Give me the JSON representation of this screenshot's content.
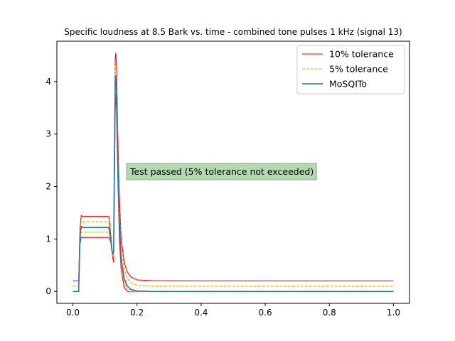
{
  "chart_data": {
    "type": "line",
    "title": "Specific loudness at 8.5 Bark vs. time - combined tone pulses 1 kHz (signal 13)",
    "xlabel": "",
    "ylabel": "",
    "xlim": [
      -0.05,
      1.05
    ],
    "ylim": [
      -0.227,
      4.77
    ],
    "xticks": [
      0.0,
      0.2,
      0.4,
      0.6,
      0.8,
      1.0
    ],
    "xtick_labels": [
      "0.0",
      "0.2",
      "0.4",
      "0.6",
      "0.8",
      "1.0"
    ],
    "yticks": [
      0,
      1,
      2,
      3,
      4
    ],
    "ytick_labels": [
      "0",
      "1",
      "2",
      "3",
      "4"
    ],
    "grid": false,
    "legend_position": "top-right",
    "annotation": "Test passed (5% tolerance not exceeded)",
    "annotation_anchor": [
      0.175,
      2.25
    ],
    "series": [
      {
        "name": "10% tolerance",
        "color": "#ff0000",
        "style": "solid",
        "x": [
          0.0,
          0.018,
          0.022,
          0.026,
          0.03,
          0.035,
          0.06,
          0.09,
          0.112,
          0.118,
          0.122,
          0.124,
          0.127,
          0.13,
          0.132,
          0.134,
          0.136,
          0.14,
          0.145,
          0.15,
          0.16,
          0.17,
          0.18,
          0.2,
          0.25,
          0.4,
          0.7,
          1.0
        ],
        "y": [
          0.2,
          0.2,
          1.2,
          1.45,
          1.43,
          1.43,
          1.43,
          1.43,
          1.43,
          1.1,
          0.8,
          0.65,
          0.55,
          3.0,
          4.45,
          4.55,
          4.3,
          3.0,
          1.8,
          1.05,
          0.55,
          0.37,
          0.28,
          0.22,
          0.205,
          0.2,
          0.2,
          0.2
        ],
        "y2": [
          0.0,
          0.0,
          0.9,
          1.04,
          1.03,
          1.03,
          1.03,
          1.03,
          1.03,
          0.95,
          0.75,
          0.68,
          0.6,
          2.3,
          3.4,
          3.75,
          3.5,
          2.2,
          1.0,
          0.45,
          0.07,
          0.0,
          0.0,
          0.0,
          0.0,
          0.0,
          0.0,
          0.0
        ]
      },
      {
        "name": "5% tolerance",
        "color": "#ffa500",
        "style": "dashed",
        "x": [
          0.0,
          0.018,
          0.022,
          0.026,
          0.03,
          0.035,
          0.06,
          0.09,
          0.112,
          0.118,
          0.122,
          0.124,
          0.127,
          0.13,
          0.132,
          0.134,
          0.136,
          0.14,
          0.145,
          0.15,
          0.16,
          0.17,
          0.18,
          0.2,
          0.25,
          0.4,
          0.7,
          1.0
        ],
        "y": [
          0.1,
          0.1,
          1.15,
          1.34,
          1.33,
          1.33,
          1.33,
          1.33,
          1.33,
          1.05,
          0.82,
          0.72,
          0.65,
          2.9,
          4.3,
          4.35,
          4.1,
          2.8,
          1.6,
          0.85,
          0.42,
          0.25,
          0.17,
          0.12,
          0.105,
          0.1,
          0.1,
          0.1
        ],
        "y2": [
          0.0,
          0.0,
          1.0,
          1.13,
          1.13,
          1.13,
          1.13,
          1.13,
          1.13,
          1.0,
          0.78,
          0.7,
          0.62,
          2.5,
          3.6,
          3.95,
          3.8,
          2.4,
          1.25,
          0.55,
          0.18,
          0.05,
          0.0,
          0.0,
          0.0,
          0.0,
          0.0,
          0.0
        ]
      },
      {
        "name": "MoSQITo",
        "color": "#1f77b4",
        "style": "solid",
        "x": [
          0.0,
          0.018,
          0.022,
          0.026,
          0.03,
          0.035,
          0.06,
          0.09,
          0.112,
          0.118,
          0.122,
          0.124,
          0.127,
          0.13,
          0.132,
          0.134,
          0.136,
          0.14,
          0.145,
          0.15,
          0.16,
          0.17,
          0.18,
          0.2,
          0.25,
          0.4,
          0.7,
          1.0
        ],
        "y": [
          0.0,
          0.0,
          1.05,
          1.24,
          1.22,
          1.22,
          1.22,
          1.22,
          1.22,
          1.0,
          0.78,
          0.72,
          0.75,
          2.8,
          3.95,
          4.12,
          3.9,
          2.55,
          1.35,
          0.65,
          0.25,
          0.1,
          0.04,
          0.01,
          0.0,
          0.0,
          0.0,
          0.0
        ]
      }
    ]
  }
}
